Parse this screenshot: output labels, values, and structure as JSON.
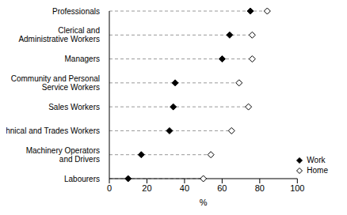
{
  "chart_data": {
    "type": "dot",
    "orientation": "horizontal",
    "x_label": "%",
    "categories": [
      "Professionals",
      "Clerical and Administrative Workers",
      "Managers",
      "Community and Personal Service Workers",
      "Sales Workers",
      "Technical and Trades Workers",
      "Machinery Operators and Drivers",
      "Labourers"
    ],
    "series": [
      {
        "name": "Work",
        "color": "#000000",
        "marker": "diamond",
        "values": [
          75,
          64,
          60,
          35,
          34,
          32,
          17,
          10
        ]
      },
      {
        "name": "Home",
        "color": "#000000",
        "marker": "diamond-open",
        "values": [
          84,
          76,
          76,
          69,
          74,
          65,
          54,
          50
        ]
      }
    ],
    "xlim": [
      0,
      100
    ],
    "xticks": [
      0,
      20,
      40,
      60,
      80,
      100
    ],
    "grid": false,
    "legend": "lower right"
  }
}
